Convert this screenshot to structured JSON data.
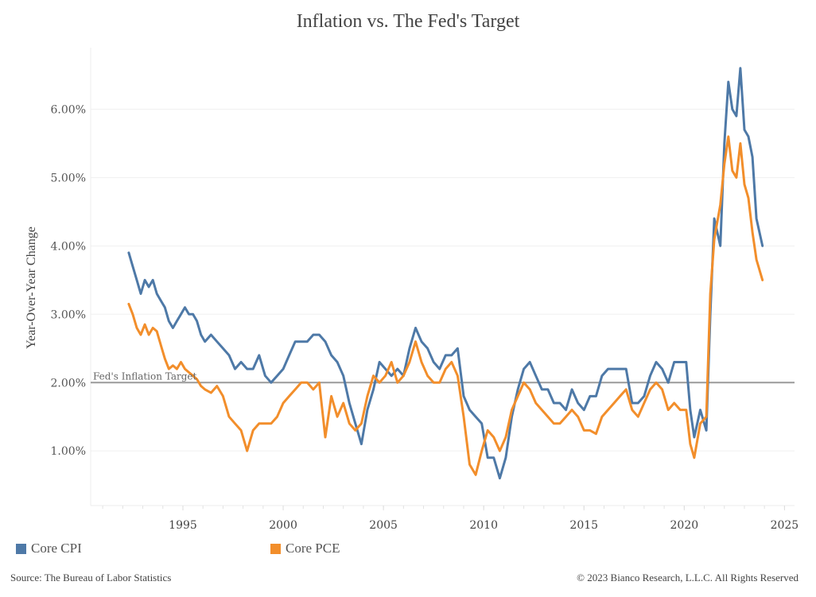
{
  "chart_data": {
    "type": "line",
    "title": "Inflation vs. The Fed's Target",
    "xlabel": "",
    "ylabel": "Year-Over-Year Change",
    "xlim": [
      1990.4,
      2025.5
    ],
    "ylim": [
      0.2,
      6.9
    ],
    "x_ticks": [
      1995,
      2000,
      2005,
      2010,
      2015,
      2020,
      2025
    ],
    "x_tick_labels": [
      "1995",
      "2000",
      "2005",
      "2010",
      "2015",
      "2020",
      "2025"
    ],
    "y_ticks": [
      1,
      2,
      3,
      4,
      5,
      6
    ],
    "y_tick_labels": [
      "1.00%",
      "2.00%",
      "3.00%",
      "4.00%",
      "5.00%",
      "6.00%"
    ],
    "grid": true,
    "legend_position": "bottom",
    "reference_line": {
      "value": 2.0,
      "label": "Fed's Inflation Target",
      "color": "#9a9a9a"
    },
    "series": [
      {
        "name": "Core CPI",
        "color": "#4e79a7",
        "x": [
          1992.3,
          1992.5,
          1992.7,
          1992.9,
          1993.1,
          1993.3,
          1993.5,
          1993.7,
          1993.9,
          1994.1,
          1994.3,
          1994.5,
          1994.7,
          1994.9,
          1995.1,
          1995.3,
          1995.5,
          1995.7,
          1995.9,
          1996.1,
          1996.4,
          1996.7,
          1997.0,
          1997.3,
          1997.6,
          1997.9,
          1998.2,
          1998.5,
          1998.8,
          1999.1,
          1999.4,
          1999.7,
          2000.0,
          2000.3,
          2000.6,
          2000.9,
          2001.2,
          2001.5,
          2001.8,
          2002.1,
          2002.4,
          2002.7,
          2003.0,
          2003.3,
          2003.6,
          2003.9,
          2004.2,
          2004.5,
          2004.8,
          2005.1,
          2005.4,
          2005.7,
          2006.0,
          2006.3,
          2006.6,
          2006.9,
          2007.2,
          2007.5,
          2007.8,
          2008.1,
          2008.4,
          2008.7,
          2009.0,
          2009.3,
          2009.6,
          2009.9,
          2010.2,
          2010.5,
          2010.8,
          2011.1,
          2011.4,
          2011.7,
          2012.0,
          2012.3,
          2012.6,
          2012.9,
          2013.2,
          2013.5,
          2013.8,
          2014.1,
          2014.4,
          2014.7,
          2015.0,
          2015.3,
          2015.6,
          2015.9,
          2016.2,
          2016.5,
          2016.8,
          2017.1,
          2017.4,
          2017.7,
          2018.0,
          2018.3,
          2018.6,
          2018.9,
          2019.2,
          2019.5,
          2019.8,
          2020.1,
          2020.3,
          2020.5,
          2020.8,
          2021.1,
          2021.3,
          2021.5,
          2021.8,
          2022.0,
          2022.2,
          2022.4,
          2022.6,
          2022.8,
          2023.0,
          2023.2,
          2023.4,
          2023.6,
          2023.9
        ],
        "y": [
          3.9,
          3.7,
          3.5,
          3.3,
          3.5,
          3.4,
          3.5,
          3.3,
          3.2,
          3.1,
          2.9,
          2.8,
          2.9,
          3.0,
          3.1,
          3.0,
          3.0,
          2.9,
          2.7,
          2.6,
          2.7,
          2.6,
          2.5,
          2.4,
          2.2,
          2.3,
          2.2,
          2.2,
          2.4,
          2.1,
          2.0,
          2.1,
          2.2,
          2.4,
          2.6,
          2.6,
          2.6,
          2.7,
          2.7,
          2.6,
          2.4,
          2.3,
          2.1,
          1.7,
          1.4,
          1.1,
          1.6,
          1.9,
          2.3,
          2.2,
          2.1,
          2.2,
          2.1,
          2.5,
          2.8,
          2.6,
          2.5,
          2.3,
          2.2,
          2.4,
          2.4,
          2.5,
          1.8,
          1.6,
          1.5,
          1.4,
          0.9,
          0.9,
          0.6,
          0.9,
          1.5,
          1.9,
          2.2,
          2.3,
          2.1,
          1.9,
          1.9,
          1.7,
          1.7,
          1.6,
          1.9,
          1.7,
          1.6,
          1.8,
          1.8,
          2.1,
          2.2,
          2.2,
          2.2,
          2.2,
          1.7,
          1.7,
          1.8,
          2.1,
          2.3,
          2.2,
          2.0,
          2.3,
          2.3,
          2.3,
          1.6,
          1.2,
          1.6,
          1.3,
          3.0,
          4.4,
          4.0,
          5.5,
          6.4,
          6.0,
          5.9,
          6.6,
          5.7,
          5.6,
          5.3,
          4.4,
          4.0
        ]
      },
      {
        "name": "Core PCE",
        "color": "#f28e2b",
        "x": [
          1992.3,
          1992.5,
          1992.7,
          1992.9,
          1993.1,
          1993.3,
          1993.5,
          1993.7,
          1993.9,
          1994.1,
          1994.3,
          1994.5,
          1994.7,
          1994.9,
          1995.1,
          1995.3,
          1995.5,
          1995.7,
          1995.9,
          1996.1,
          1996.4,
          1996.7,
          1997.0,
          1997.3,
          1997.6,
          1997.9,
          1998.2,
          1998.5,
          1998.8,
          1999.1,
          1999.4,
          1999.7,
          2000.0,
          2000.3,
          2000.6,
          2000.9,
          2001.2,
          2001.5,
          2001.8,
          2002.1,
          2002.4,
          2002.7,
          2003.0,
          2003.3,
          2003.6,
          2003.9,
          2004.2,
          2004.5,
          2004.8,
          2005.1,
          2005.4,
          2005.7,
          2006.0,
          2006.3,
          2006.6,
          2006.9,
          2007.2,
          2007.5,
          2007.8,
          2008.1,
          2008.4,
          2008.7,
          2009.0,
          2009.3,
          2009.6,
          2009.9,
          2010.2,
          2010.5,
          2010.8,
          2011.1,
          2011.4,
          2011.7,
          2012.0,
          2012.3,
          2012.6,
          2012.9,
          2013.2,
          2013.5,
          2013.8,
          2014.1,
          2014.4,
          2014.7,
          2015.0,
          2015.3,
          2015.6,
          2015.9,
          2016.2,
          2016.5,
          2016.8,
          2017.1,
          2017.4,
          2017.7,
          2018.0,
          2018.3,
          2018.6,
          2018.9,
          2019.2,
          2019.5,
          2019.8,
          2020.1,
          2020.3,
          2020.5,
          2020.8,
          2021.1,
          2021.3,
          2021.5,
          2021.8,
          2022.0,
          2022.2,
          2022.4,
          2022.6,
          2022.8,
          2023.0,
          2023.2,
          2023.4,
          2023.6,
          2023.9
        ],
        "y": [
          3.15,
          3.0,
          2.8,
          2.7,
          2.85,
          2.7,
          2.8,
          2.75,
          2.55,
          2.35,
          2.2,
          2.25,
          2.2,
          2.3,
          2.2,
          2.15,
          2.1,
          2.05,
          1.95,
          1.9,
          1.85,
          1.95,
          1.8,
          1.5,
          1.4,
          1.3,
          1.0,
          1.3,
          1.4,
          1.4,
          1.4,
          1.5,
          1.7,
          1.8,
          1.9,
          2.0,
          2.0,
          1.9,
          2.0,
          1.2,
          1.8,
          1.5,
          1.7,
          1.4,
          1.3,
          1.4,
          1.8,
          2.1,
          2.0,
          2.1,
          2.3,
          2.0,
          2.1,
          2.3,
          2.6,
          2.3,
          2.1,
          2.0,
          2.0,
          2.2,
          2.3,
          2.1,
          1.5,
          0.8,
          0.65,
          1.0,
          1.3,
          1.2,
          1.0,
          1.2,
          1.6,
          1.8,
          2.0,
          1.9,
          1.7,
          1.6,
          1.5,
          1.4,
          1.4,
          1.5,
          1.6,
          1.5,
          1.3,
          1.3,
          1.25,
          1.5,
          1.6,
          1.7,
          1.8,
          1.9,
          1.6,
          1.5,
          1.7,
          1.9,
          2.0,
          1.9,
          1.6,
          1.7,
          1.6,
          1.6,
          1.1,
          0.9,
          1.4,
          1.5,
          3.3,
          4.1,
          4.6,
          5.2,
          5.6,
          5.1,
          5.0,
          5.5,
          4.9,
          4.7,
          4.2,
          3.8,
          3.5
        ]
      }
    ]
  },
  "legend": {
    "items": [
      {
        "label": "Core CPI",
        "color": "#4e79a7"
      },
      {
        "label": "Core PCE",
        "color": "#f28e2b"
      }
    ]
  },
  "footer": {
    "source": "Source: The Bureau of Labor Statistics",
    "copyright": "© 2023 Bianco Research, L.L.C. All Rights Reserved"
  }
}
